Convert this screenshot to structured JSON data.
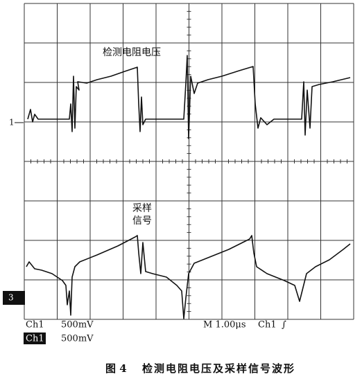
{
  "scope": {
    "markers": {
      "ch1": "1",
      "ch3": "3"
    },
    "labels": {
      "resistor_voltage": "检测电阻电压",
      "sampling_signal": [
        "采样",
        "信号"
      ]
    },
    "status": {
      "line1": [
        "Ch1",
        "500mV",
        "M 1.00μs",
        "Ch1",
        "∫"
      ],
      "line2": [
        "Ch1",
        "500mV"
      ]
    }
  },
  "caption": {
    "figure": "图 4",
    "title": "检测电阻电压及采样信号波形"
  }
}
